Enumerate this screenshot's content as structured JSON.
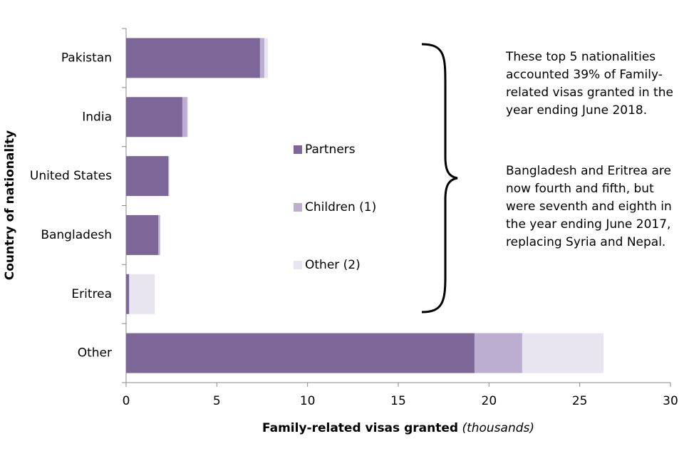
{
  "chart_data": {
    "type": "bar",
    "orientation": "horizontal",
    "stacked": true,
    "categories": [
      "Pakistan",
      "India",
      "United States",
      "Bangladesh",
      "Eritrea",
      "Other"
    ],
    "series": [
      {
        "name": "Partners",
        "color": "#7d6798",
        "values": [
          7.38,
          3.1,
          2.32,
          1.77,
          0.16,
          19.2
        ]
      },
      {
        "name": "Children (1)",
        "color": "#bcaed0",
        "values": [
          0.24,
          0.27,
          0.05,
          0.1,
          0.02,
          2.63
        ]
      },
      {
        "name": "Other (2)",
        "color": "#e8e4f0",
        "values": [
          0.2,
          0.05,
          0.02,
          0.02,
          1.4,
          4.48
        ]
      }
    ],
    "xlim": [
      0,
      30
    ],
    "xticks": [
      0,
      5,
      10,
      15,
      20,
      25,
      30
    ],
    "x_label": "Family-related visas granted",
    "x_label_unit": "(thousands)",
    "y_label": "Country of nationality",
    "annotations": [
      [
        "These top 5 nationalities",
        "accounted 39% of Family-",
        "related visas granted in the",
        "year ending June 2018."
      ],
      [
        "Bangladesh and Eritrea are",
        "now fourth and fifth, but",
        "were seventh and eighth in",
        "the year ending June 2017,",
        "replacing Syria and Nepal."
      ]
    ]
  }
}
